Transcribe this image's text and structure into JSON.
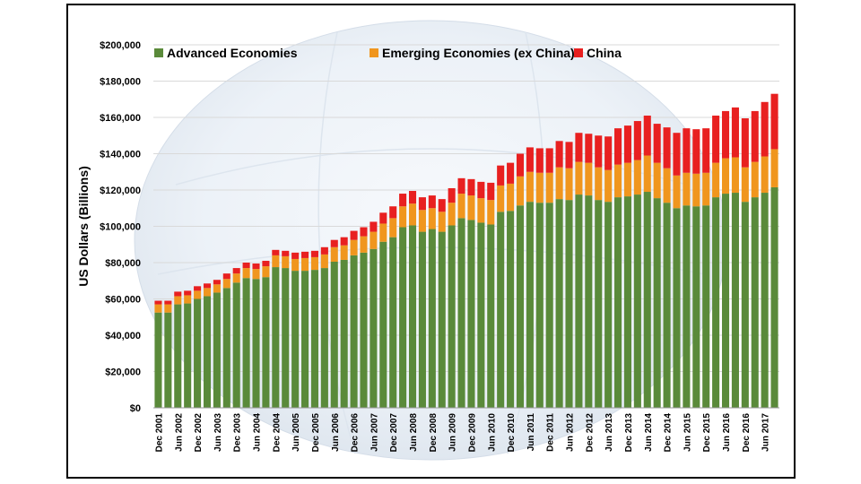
{
  "chart_data": {
    "type": "bar",
    "stacked": true,
    "title": "",
    "xlabel": "",
    "ylabel": "US Dollars (Billions)",
    "ylim": [
      0,
      200000
    ],
    "yticks": [
      "$0",
      "$20,000",
      "$40,000",
      "$60,000",
      "$80,000",
      "$100,000",
      "$120,000",
      "$140,000",
      "$160,000",
      "$180,000",
      "$200,000"
    ],
    "grid": true,
    "legend_position": "top",
    "x_tick_labels": [
      "Dec 2001",
      "Jun 2002",
      "Dec 2002",
      "Jun 2003",
      "Dec 2003",
      "Jun 2004",
      "Dec 2004",
      "Jun 2005",
      "Dec 2005",
      "Jun 2006",
      "Dec 2006",
      "Jun 2007",
      "Dec 2007",
      "Jun 2008",
      "Dec 2008",
      "Jun 2009",
      "Dec 2009",
      "Jun 2010",
      "Dec 2010",
      "Jun 2011",
      "Dec 2011",
      "Jun 2012",
      "Dec 2012",
      "Jun 2013",
      "Dec 2013",
      "Jun 2014",
      "Dec 2014",
      "Jun 2015",
      "Dec 2015",
      "Jun 2016",
      "Dec 2016",
      "Jun 2017"
    ],
    "categories": [
      "Dec 2001",
      "Mar 2002",
      "Jun 2002",
      "Sep 2002",
      "Dec 2002",
      "Mar 2003",
      "Jun 2003",
      "Sep 2003",
      "Dec 2003",
      "Mar 2004",
      "Jun 2004",
      "Sep 2004",
      "Dec 2004",
      "Mar 2005",
      "Jun 2005",
      "Sep 2005",
      "Dec 2005",
      "Mar 2006",
      "Jun 2006",
      "Sep 2006",
      "Dec 2006",
      "Mar 2007",
      "Jun 2007",
      "Sep 2007",
      "Dec 2007",
      "Mar 2008",
      "Jun 2008",
      "Sep 2008",
      "Dec 2008",
      "Mar 2009",
      "Jun 2009",
      "Sep 2009",
      "Dec 2009",
      "Mar 2010",
      "Jun 2010",
      "Sep 2010",
      "Dec 2010",
      "Mar 2011",
      "Jun 2011",
      "Sep 2011",
      "Dec 2011",
      "Mar 2012",
      "Jun 2012",
      "Sep 2012",
      "Dec 2012",
      "Mar 2013",
      "Jun 2013",
      "Sep 2013",
      "Dec 2013",
      "Mar 2014",
      "Jun 2014",
      "Sep 2014",
      "Dec 2014",
      "Mar 2015",
      "Jun 2015",
      "Sep 2015",
      "Dec 2015",
      "Mar 2016",
      "Jun 2016",
      "Sep 2016",
      "Dec 2016",
      "Mar 2017",
      "Jun 2017",
      "Sep 2017"
    ],
    "series": [
      {
        "name": "Advanced Economies",
        "color": "#5a8a3a",
        "values": [
          52500,
          52500,
          57000,
          57500,
          60000,
          61500,
          63500,
          66000,
          69000,
          71500,
          71000,
          72000,
          77500,
          77000,
          75500,
          75500,
          76000,
          77000,
          80500,
          81500,
          84000,
          85500,
          87500,
          91500,
          94000,
          99500,
          100500,
          97000,
          98500,
          97000,
          100500,
          104500,
          103500,
          102000,
          101000,
          108000,
          108500,
          111500,
          113500,
          113000,
          113000,
          115000,
          114500,
          117500,
          117000,
          114500,
          113500,
          116000,
          116500,
          117500,
          119000,
          115500,
          113000,
          110000,
          111500,
          111000,
          111500,
          116000,
          118000,
          118500,
          113500,
          116000,
          118500,
          121500
        ]
      },
      {
        "name": "Emerging Economies (ex China)",
        "color": "#f0961e",
        "values": [
          4500,
          4500,
          4500,
          4500,
          4500,
          4500,
          4500,
          5000,
          5000,
          5500,
          5500,
          6000,
          6500,
          6500,
          6500,
          7000,
          7000,
          7500,
          8000,
          8000,
          8500,
          9000,
          9500,
          10000,
          10500,
          11500,
          12000,
          12000,
          11500,
          11000,
          12500,
          13500,
          13500,
          13500,
          13500,
          14500,
          15000,
          16000,
          16500,
          16500,
          16500,
          17500,
          17500,
          18000,
          18000,
          18000,
          17500,
          18000,
          18500,
          19000,
          20000,
          19500,
          19000,
          18000,
          18000,
          18000,
          18000,
          19000,
          19500,
          19500,
          19000,
          19500,
          20000,
          21000
        ]
      },
      {
        "name": "China",
        "color": "#e82020",
        "values": [
          2000,
          2000,
          2500,
          2500,
          2500,
          2500,
          2500,
          3000,
          3000,
          3000,
          3000,
          3000,
          3000,
          3000,
          3500,
          3500,
          3500,
          4000,
          4000,
          4500,
          5000,
          5000,
          5500,
          6000,
          6500,
          7000,
          7000,
          7000,
          7000,
          7000,
          8000,
          8500,
          9000,
          9000,
          9500,
          11000,
          11500,
          12500,
          13500,
          13500,
          13500,
          14500,
          14500,
          16000,
          16000,
          17500,
          18500,
          20000,
          20500,
          21500,
          22000,
          21500,
          22500,
          23500,
          24500,
          24500,
          24500,
          26000,
          26000,
          27500,
          27000,
          28000,
          30000,
          30500
        ]
      }
    ]
  }
}
